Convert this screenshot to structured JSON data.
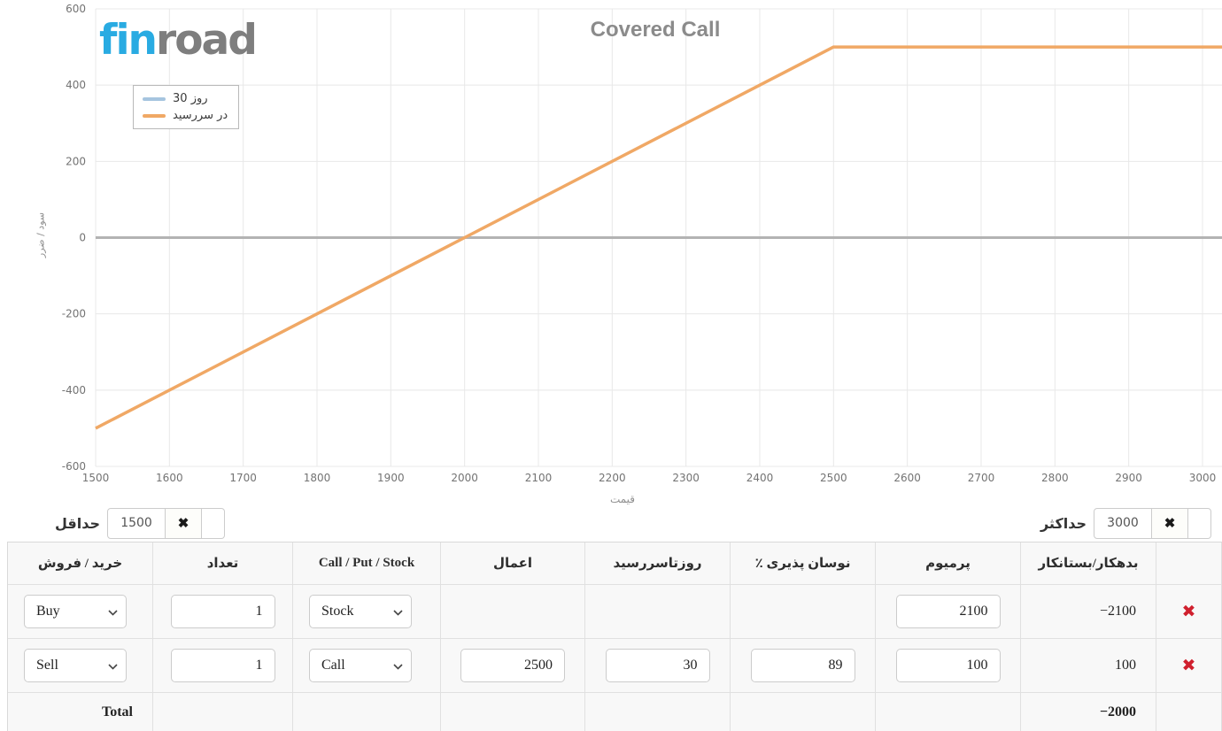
{
  "logo": {
    "fin": "fin",
    "road": "road",
    "fin_color": "#29abe2",
    "road_color": "#7e7e7e"
  },
  "chart_data": {
    "type": "line",
    "title": "Covered Call",
    "xlabel": "قیمت",
    "ylabel": "سود / ضرر",
    "xlim": [
      1500,
      3000
    ],
    "ylim": [
      -600,
      600
    ],
    "x_ticks": [
      1500,
      1600,
      1700,
      1800,
      1900,
      2000,
      2100,
      2200,
      2300,
      2400,
      2500,
      2600,
      2700,
      2800,
      2900,
      3000
    ],
    "y_ticks": [
      -600,
      -400,
      -200,
      0,
      200,
      400,
      600
    ],
    "grid": true,
    "grid_color": "#e8e8e8",
    "zero_line_color": "#b3b3b3",
    "legend_position": "top-left",
    "series": [
      {
        "name": "30 روز",
        "color": "#a6c5df",
        "points": []
      },
      {
        "name": "در سررسید",
        "color": "#f0a865",
        "points": [
          [
            1500,
            -500
          ],
          [
            2000,
            0
          ],
          [
            2500,
            500
          ],
          [
            3000,
            500
          ]
        ]
      }
    ]
  },
  "controls": {
    "clear_icon": "✖",
    "min": {
      "label": "حداقل",
      "value": "1500"
    },
    "max": {
      "label": "حداکثر",
      "value": "3000"
    }
  },
  "table": {
    "headers": [
      "خرید / فروش",
      "تعداد",
      "Call / Put / Stock",
      "اعمال",
      "روزتاسررسید",
      "نوسان پذیری ٪",
      "پرمیوم",
      "بدهکار/بستانکار",
      ""
    ],
    "delete_icon": "✖",
    "rows": [
      {
        "side": "Buy",
        "qty": "1",
        "type": "Stock",
        "strike": "",
        "days": "",
        "vol": "",
        "premium": "2100",
        "balance": "−2100"
      },
      {
        "side": "Sell",
        "qty": "1",
        "type": "Call",
        "strike": "2500",
        "days": "30",
        "vol": "89",
        "premium": "100",
        "balance": "100"
      }
    ],
    "total": {
      "label": "Total",
      "balance": "−2000"
    }
  }
}
